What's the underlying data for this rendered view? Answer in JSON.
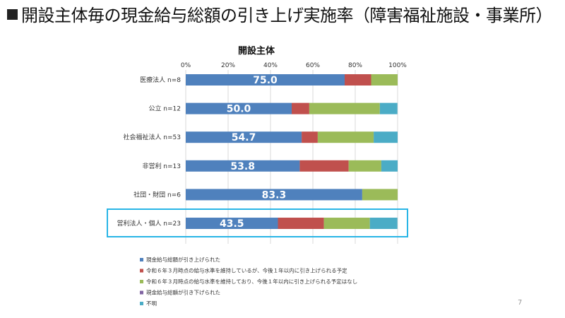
{
  "slide": {
    "title": "開設主体毎の現金給与総額の引き上げ実施率（障害福祉施設・事業所）",
    "page_number": "7"
  },
  "chart_data": {
    "type": "bar",
    "orientation": "horizontal",
    "stacked": true,
    "title": "開設主体",
    "xlim": [
      0,
      100
    ],
    "x_ticks": [
      "0%",
      "20%",
      "40%",
      "60%",
      "80%",
      "100%"
    ],
    "categories": [
      "医療法人 n=8",
      "公立 n=12",
      "社会福祉法人 n=53",
      "非営利 n=13",
      "社団・財団 n=6",
      "営利法人・個人 n=23"
    ],
    "highlight_category": "営利法人・個人 n=23",
    "series": [
      {
        "name": "現金給与総額が引き上げられた",
        "color": "#4f81bd",
        "values": [
          75.0,
          50.0,
          54.7,
          53.8,
          83.3,
          43.5
        ],
        "labels": [
          "75.0",
          "50.0",
          "54.7",
          "53.8",
          "83.3",
          "43.5"
        ]
      },
      {
        "name": "令和６年３月時点の給与水準を維持しているが、今後１年以内に引き上げられる予定",
        "color": "#c0504d",
        "values": [
          12.5,
          8.3,
          7.6,
          23.1,
          0,
          21.7
        ]
      },
      {
        "name": "令和６年３月時点の給与水準を維持しており、今後１年以内に引き上げられる予定はなし",
        "color": "#9bbb59",
        "values": [
          12.5,
          33.3,
          26.4,
          15.4,
          16.7,
          21.7
        ]
      },
      {
        "name": "現金給与総額が引き下げられた",
        "color": "#8064a2",
        "values": [
          0,
          0,
          0,
          0,
          0,
          0
        ]
      },
      {
        "name": "不明",
        "color": "#4bacc6",
        "values": [
          0,
          8.3,
          11.3,
          7.7,
          0,
          13.0
        ]
      }
    ]
  },
  "colors": {
    "highlight_border": "#29b5e6",
    "grid": "#d9d9d9"
  }
}
